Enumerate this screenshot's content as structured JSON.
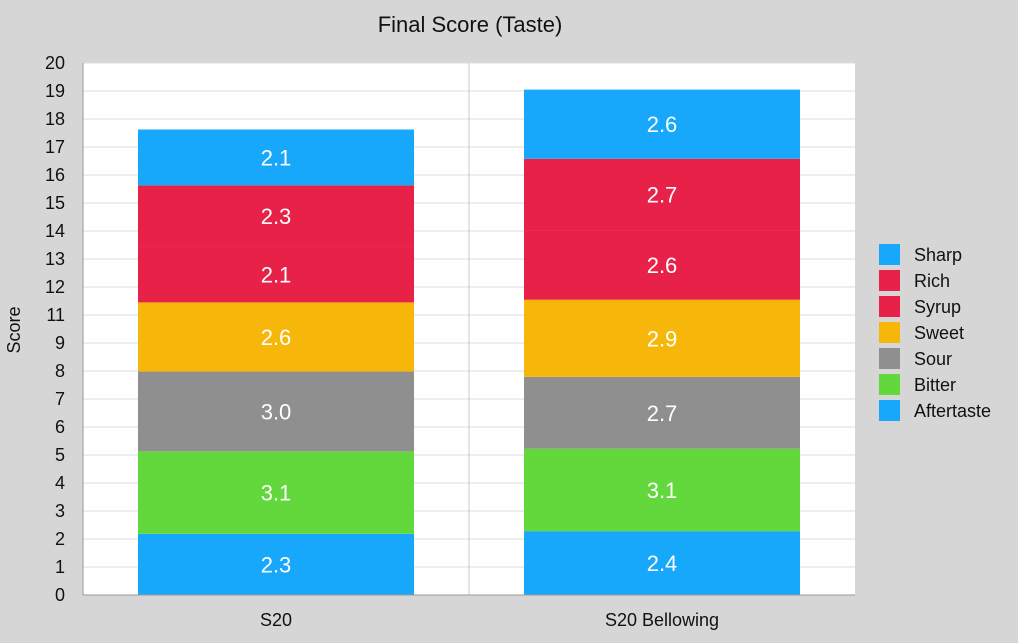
{
  "chart_data": {
    "type": "bar",
    "stacked": true,
    "title": "Final Score (Taste)",
    "xlabel": "",
    "ylabel": "Score",
    "y_ticks": [
      "0",
      "1",
      "2",
      "3",
      "4",
      "5",
      "6",
      "7",
      "8",
      "9",
      "11",
      "12",
      "13",
      "14",
      "15",
      "16",
      "17",
      "18",
      "19",
      "20"
    ],
    "ylim": [
      0,
      20
    ],
    "grid": true,
    "legend_position": "right",
    "categories": [
      "S20",
      "S20 Bellowing"
    ],
    "series": [
      {
        "name": "Aftertaste",
        "color": "#17a7fb",
        "values": [
          2.3,
          2.4
        ],
        "labels": [
          "2.3",
          "2.4"
        ]
      },
      {
        "name": "Bitter",
        "color": "#62d83c",
        "values": [
          3.1,
          3.1
        ],
        "labels": [
          "3.1",
          "3.1"
        ]
      },
      {
        "name": "Sour",
        "color": "#8f8f8f",
        "values": [
          3.0,
          2.7
        ],
        "labels": [
          "3.0",
          "2.7"
        ]
      },
      {
        "name": "Sweet",
        "color": "#f6b70a",
        "values": [
          2.6,
          2.9
        ],
        "labels": [
          "2.6",
          "2.9"
        ]
      },
      {
        "name": "Syrup",
        "color": "#e82149",
        "values": [
          2.1,
          2.6
        ],
        "labels": [
          "2.1",
          "2.6"
        ]
      },
      {
        "name": "Rich",
        "color": "#e82149",
        "values": [
          2.3,
          2.7
        ],
        "labels": [
          "2.3",
          "2.7"
        ]
      },
      {
        "name": "Sharp",
        "color": "#17a7fb",
        "values": [
          2.1,
          2.6
        ],
        "labels": [
          "2.1",
          "2.6"
        ]
      }
    ],
    "legend_order": [
      "Sharp",
      "Rich",
      "Syrup",
      "Sweet",
      "Sour",
      "Bitter",
      "Aftertaste"
    ]
  }
}
